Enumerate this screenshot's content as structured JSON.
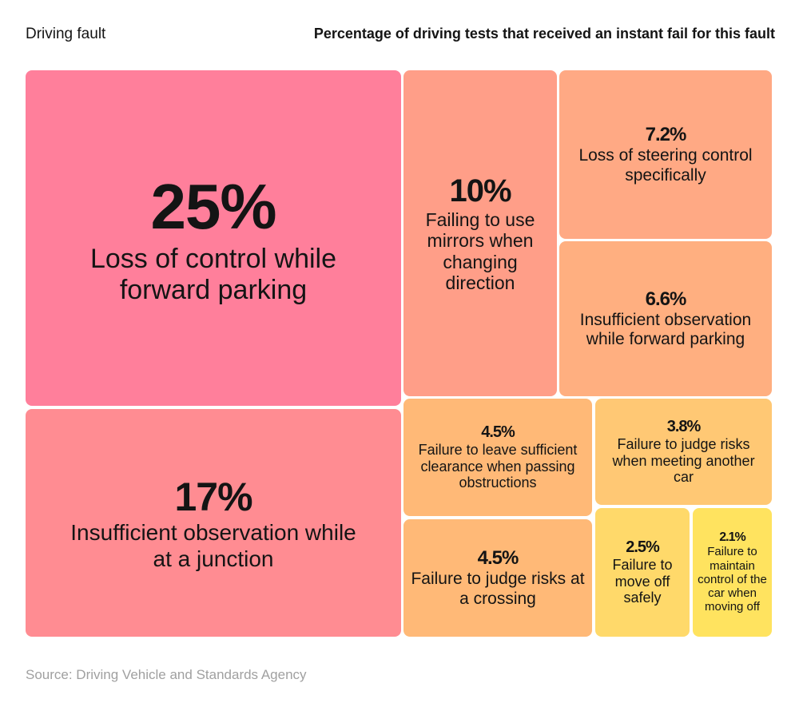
{
  "header": {
    "left_label": "Driving fault",
    "right_label": "Percentage of driving tests that received an instant fail for this fault"
  },
  "source": "Source: Driving Vehicle and Standards Agency",
  "chart_data": {
    "type": "treemap",
    "title": "Percentage of driving tests that received an instant fail for this fault",
    "unit": "%",
    "items": [
      {
        "value": 25,
        "value_label": "25%",
        "label": "Loss of control while forward parking",
        "color": "#FF7F9B"
      },
      {
        "value": 17,
        "value_label": "17%",
        "label": "Insufficient observation while at a junction",
        "color": "#FF8C92"
      },
      {
        "value": 10,
        "value_label": "10%",
        "label": "Failing to use mirrors when changing direction",
        "color": "#FF9E88"
      },
      {
        "value": 7.2,
        "value_label": "7.2%",
        "label": "Loss of steering control specifically",
        "color": "#FFA984"
      },
      {
        "value": 6.6,
        "value_label": "6.6%",
        "label": "Insufficient observation while forward parking",
        "color": "#FFAF80"
      },
      {
        "value": 4.5,
        "value_label": "4.5%",
        "label": "Failure to leave sufficient clearance when passing obstructions",
        "color": "#FFB977"
      },
      {
        "value": 3.8,
        "value_label": "3.8%",
        "label": "Failure to judge risks when meeting another car",
        "color": "#FFC874"
      },
      {
        "value": 4.5,
        "value_label": "4.5%",
        "label": "Failure to judge risks at a crossing",
        "color": "#FFB977"
      },
      {
        "value": 2.5,
        "value_label": "2.5%",
        "label": "Failure to move off safely",
        "color": "#FFD96A"
      },
      {
        "value": 2.1,
        "value_label": "2.1%",
        "label": "Failure to maintain control of the car when moving off",
        "color": "#FFE35F"
      }
    ]
  }
}
